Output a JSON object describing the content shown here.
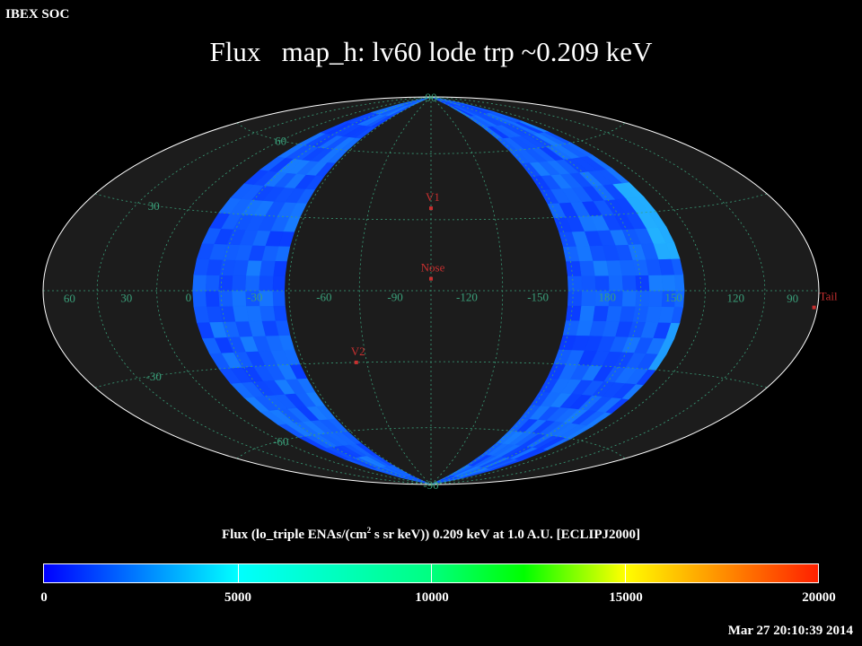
{
  "header": {
    "corner_label": "IBEX SOC",
    "title": "Flux   map_h: lv60 lode trp ~0.209 keV"
  },
  "caption": {
    "before": "Flux (lo_triple ENAs/(cm",
    "sup": "2",
    "after": " s sr keV))  0.209 keV at 1.0 A.U. [ECLIPJ2000]"
  },
  "timestamp": "Mar 27 20:10:39 2014",
  "colors": {
    "background": "#000000",
    "map_fill": "#1c1c1c",
    "graticule": "#3aa07a",
    "marker": "#c83030",
    "low_flux": "#1a50ff",
    "high_flux": "#30e8ff"
  },
  "chart_data": {
    "type": "heatmap",
    "projection": "Hammer-Aitoff (ecliptic J2000)",
    "longitude_labels": [
      "60",
      "30",
      "0",
      "-30",
      "-60",
      "-90",
      "-120",
      "-150",
      "180",
      "150",
      "120",
      "90"
    ],
    "latitude_labels": [
      "90",
      "60",
      "30",
      "-30",
      "-60",
      "-90"
    ],
    "markers": [
      {
        "label": "V1",
        "lon": -105,
        "lat": 35
      },
      {
        "label": "Nose",
        "lon": -105,
        "lat": 5
      },
      {
        "label": "V2",
        "lon": -70,
        "lat": -30
      },
      {
        "label": "Tail",
        "lon": 75,
        "lat": -5
      }
    ],
    "coverage": {
      "description": "two observed crescents",
      "left_band_lon_range": [
        -30,
        30
      ],
      "right_band_lon_range": [
        150,
        210
      ],
      "typical_flux": 2300,
      "max_flux": 4500
    },
    "colorbar": {
      "min": 0,
      "max": 20000,
      "ticks": [
        "0",
        "5000",
        "10000",
        "15000",
        "20000"
      ]
    }
  }
}
